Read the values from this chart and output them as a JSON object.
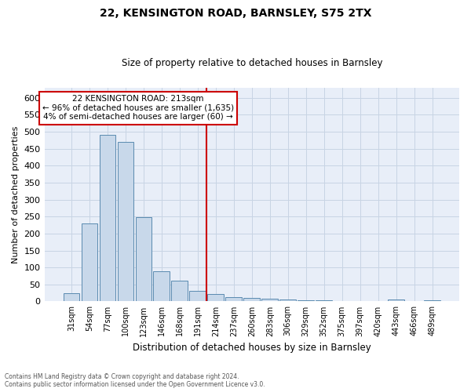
{
  "title": "22, KENSINGTON ROAD, BARNSLEY, S75 2TX",
  "subtitle": "Size of property relative to detached houses in Barnsley",
  "xlabel": "Distribution of detached houses by size in Barnsley",
  "ylabel": "Number of detached properties",
  "footer_line1": "Contains HM Land Registry data © Crown copyright and database right 2024.",
  "footer_line2": "Contains public sector information licensed under the Open Government Licence v3.0.",
  "categories": [
    "31sqm",
    "54sqm",
    "77sqm",
    "100sqm",
    "123sqm",
    "146sqm",
    "168sqm",
    "191sqm",
    "214sqm",
    "237sqm",
    "260sqm",
    "283sqm",
    "306sqm",
    "329sqm",
    "352sqm",
    "375sqm",
    "397sqm",
    "420sqm",
    "443sqm",
    "466sqm",
    "489sqm"
  ],
  "values": [
    25,
    230,
    490,
    470,
    248,
    88,
    62,
    30,
    22,
    12,
    10,
    9,
    5,
    4,
    3,
    2,
    2,
    2,
    6,
    2,
    4
  ],
  "bar_color": "#c8d8ea",
  "bar_edge_color": "#5a8ab0",
  "bar_edge_width": 0.7,
  "grid_color": "#c8d4e4",
  "background_color": "#e8eef8",
  "property_line_label": "22 KENSINGTON ROAD: 213sqm",
  "annotation_line1": "← 96% of detached houses are smaller (1,635)",
  "annotation_line2": "4% of semi-detached houses are larger (60) →",
  "annotation_box_color": "#ffffff",
  "annotation_box_edge_color": "#cc0000",
  "line_color": "#cc0000",
  "ylim": [
    0,
    630
  ],
  "yticks": [
    0,
    50,
    100,
    150,
    200,
    250,
    300,
    350,
    400,
    450,
    500,
    550,
    600
  ],
  "line_bar_index": 7.5
}
